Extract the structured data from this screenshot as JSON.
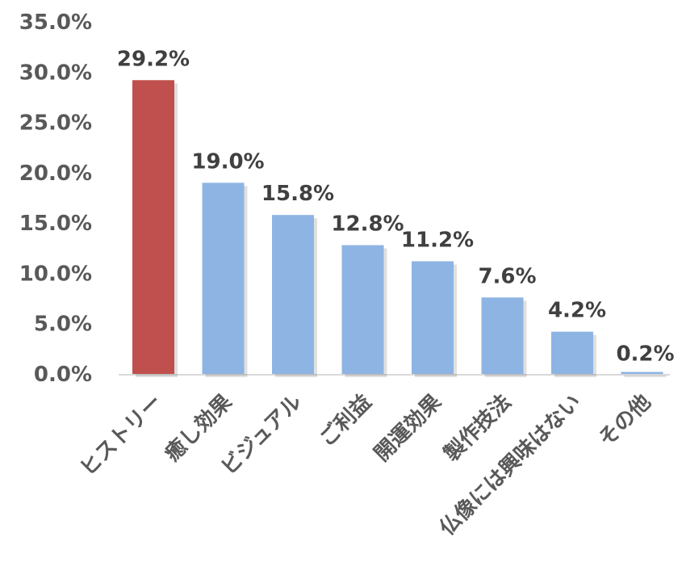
{
  "chart_data": {
    "type": "bar",
    "categories": [
      "ヒストリー",
      "癒し効果",
      "ビジュアル",
      "ご利益",
      "開運効果",
      "製作技法",
      "仏像には興味はない",
      "その他"
    ],
    "values": [
      29.2,
      19.0,
      15.8,
      12.8,
      11.2,
      7.6,
      4.2,
      0.2
    ],
    "value_labels": [
      "29.2%",
      "19.0%",
      "15.8%",
      "12.8%",
      "11.2%",
      "7.6%",
      "4.2%",
      "0.2%"
    ],
    "y_ticks": [
      "0.0%",
      "5.0%",
      "10.0%",
      "15.0%",
      "20.0%",
      "25.0%",
      "30.0%",
      "35.0%"
    ],
    "ylim": [
      0,
      35
    ],
    "grid": false,
    "legend": "none",
    "highlight_index": 0,
    "colors": {
      "highlight_bar": "#c0504d",
      "bar": "#8eb4e3",
      "highlight_label": "#c00000",
      "label": "#404040",
      "axis": "#d9d9d9",
      "tick": "#595959"
    }
  }
}
